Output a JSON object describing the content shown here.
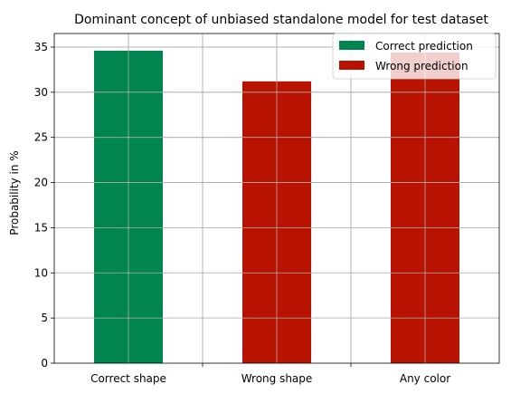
{
  "chart_data": {
    "type": "bar",
    "title": "Dominant concept of unbiased standalone model for test dataset",
    "xlabel": "",
    "ylabel": "Probability in %",
    "categories": [
      "Correct shape",
      "Wrong shape",
      "Any color"
    ],
    "series": [
      {
        "name": "Correct prediction",
        "color": "#008450",
        "values": [
          34.6,
          null,
          null
        ]
      },
      {
        "name": "Wrong prediction",
        "color": "#B81300",
        "values": [
          null,
          31.2,
          34.4
        ]
      }
    ],
    "ylim": [
      0,
      36.5
    ],
    "yticks": [
      0,
      5,
      10,
      15,
      20,
      25,
      30,
      35
    ],
    "grid": true,
    "legend_position": "top-right"
  }
}
